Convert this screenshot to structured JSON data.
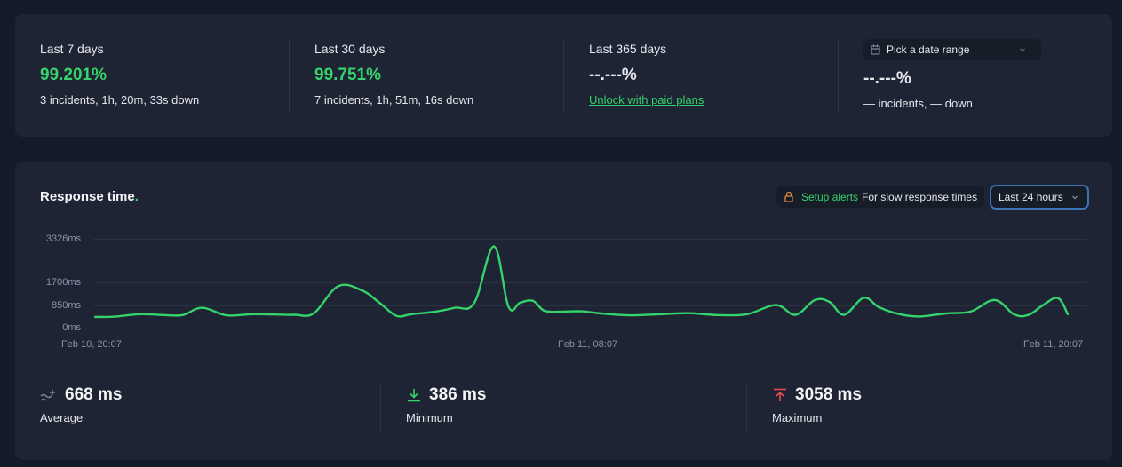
{
  "uptime": {
    "periods": [
      {
        "label": "Last 7 days",
        "value": "99.201%",
        "detail": "3 incidents, 1h, 20m, 33s down"
      },
      {
        "label": "Last 30 days",
        "value": "99.751%",
        "detail": "7 incidents, 1h, 51m, 16s down"
      },
      {
        "label": "Last 365 days",
        "value": "--.---%",
        "link": "Unlock with paid plans"
      }
    ],
    "custom": {
      "picker_label": "Pick a date range",
      "value": "--.---%",
      "detail": "— incidents, — down"
    }
  },
  "response_time": {
    "title": "Response time",
    "title_dot": ".",
    "alert_link": "Setup alerts",
    "alert_text": "For slow response times",
    "range_selected": "Last 24 hours",
    "stats": {
      "average": {
        "value": "668 ms",
        "label": "Average"
      },
      "minimum": {
        "value": "386 ms",
        "label": "Minimum"
      },
      "maximum": {
        "value": "3058 ms",
        "label": "Maximum"
      }
    }
  },
  "colors": {
    "accent_green": "#34d36b",
    "max_red": "#e5484d",
    "select_border": "#3b74b5",
    "card_bg": "#1e2433",
    "page_bg": "#131a28"
  },
  "chart_data": {
    "type": "line",
    "title": "Response time",
    "xlabel": "",
    "ylabel": "ms",
    "ylim": [
      0,
      3326
    ],
    "yticks": [
      "0ms",
      "850ms",
      "1700ms",
      "3326ms"
    ],
    "xticks": [
      "Feb 10, 20:07",
      "Feb 11, 08:07",
      "Feb 11, 20:07"
    ],
    "grid": true,
    "series": [
      {
        "name": "Response time",
        "color": "#34d36b",
        "x_fraction": [
          0,
          0.02,
          0.045,
          0.07,
          0.09,
          0.11,
          0.135,
          0.16,
          0.185,
          0.205,
          0.225,
          0.25,
          0.275,
          0.293,
          0.31,
          0.325,
          0.35,
          0.37,
          0.39,
          0.41,
          0.425,
          0.437,
          0.45,
          0.462,
          0.48,
          0.5,
          0.52,
          0.55,
          0.58,
          0.61,
          0.64,
          0.67,
          0.7,
          0.72,
          0.74,
          0.755,
          0.77,
          0.79,
          0.805,
          0.82,
          0.835,
          0.85,
          0.875,
          0.9,
          0.925,
          0.945,
          0.96,
          0.975,
          0.99,
          1.0
        ],
        "values": [
          420,
          430,
          520,
          490,
          490,
          760,
          480,
          520,
          510,
          500,
          560,
          1570,
          1400,
          930,
          460,
          520,
          620,
          760,
          950,
          3058,
          800,
          950,
          1020,
          650,
          620,
          630,
          550,
          480,
          520,
          560,
          490,
          520,
          860,
          500,
          1050,
          980,
          500,
          1130,
          800,
          590,
          470,
          440,
          550,
          620,
          1050,
          510,
          500,
          870,
          1120,
          520
        ]
      }
    ]
  }
}
